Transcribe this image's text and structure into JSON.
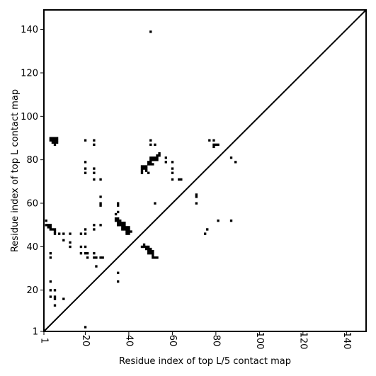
{
  "chart_data": {
    "type": "scatter",
    "xlabel": "Residue index of top L/5 contact map",
    "ylabel": "Residue index of top L contact map",
    "xlim": [
      1,
      149
    ],
    "ylim": [
      1,
      149
    ],
    "x_ticks": [
      1,
      20,
      40,
      60,
      80,
      100,
      120,
      140
    ],
    "y_ticks": [
      1,
      20,
      40,
      60,
      80,
      100,
      120,
      140
    ],
    "x_tick_labels": [
      "1",
      "20",
      "40",
      "60",
      "80",
      "100",
      "120",
      "140"
    ],
    "y_tick_labels": [
      "1",
      "20",
      "40",
      "60",
      "80",
      "100",
      "120",
      "140"
    ],
    "diagonal_line": true,
    "marker": "square",
    "marker_color": "#000000",
    "grid": false,
    "points": [
      [
        4,
        90
      ],
      [
        5,
        90
      ],
      [
        6,
        90
      ],
      [
        7,
        90
      ],
      [
        4,
        89
      ],
      [
        5,
        89
      ],
      [
        6,
        89
      ],
      [
        7,
        89
      ],
      [
        5,
        88
      ],
      [
        6,
        88
      ],
      [
        7,
        88
      ],
      [
        6,
        87
      ],
      [
        20,
        89
      ],
      [
        24,
        89
      ],
      [
        24,
        87
      ],
      [
        20,
        79
      ],
      [
        20,
        76
      ],
      [
        24,
        76
      ],
      [
        20,
        74
      ],
      [
        24,
        74
      ],
      [
        24,
        71
      ],
      [
        27,
        71
      ],
      [
        27,
        63
      ],
      [
        27,
        60
      ],
      [
        27,
        59
      ],
      [
        35,
        60
      ],
      [
        35,
        59
      ],
      [
        35,
        56
      ],
      [
        34,
        55
      ],
      [
        34,
        53
      ],
      [
        35,
        53
      ],
      [
        34,
        52
      ],
      [
        35,
        52
      ],
      [
        36,
        52
      ],
      [
        35,
        51
      ],
      [
        36,
        51
      ],
      [
        37,
        51
      ],
      [
        38,
        51
      ],
      [
        35,
        50
      ],
      [
        36,
        50
      ],
      [
        37,
        50
      ],
      [
        38,
        50
      ],
      [
        37,
        49
      ],
      [
        38,
        49
      ],
      [
        39,
        49
      ],
      [
        40,
        49
      ],
      [
        37,
        48
      ],
      [
        38,
        48
      ],
      [
        39,
        48
      ],
      [
        40,
        48
      ],
      [
        39,
        47
      ],
      [
        40,
        47
      ],
      [
        41,
        47
      ],
      [
        39,
        46
      ],
      [
        40,
        46
      ],
      [
        2,
        52
      ],
      [
        2,
        50
      ],
      [
        3,
        50
      ],
      [
        4,
        50
      ],
      [
        3,
        49
      ],
      [
        4,
        49
      ],
      [
        4,
        48
      ],
      [
        5,
        48
      ],
      [
        6,
        48
      ],
      [
        6,
        47
      ],
      [
        6,
        46
      ],
      [
        8,
        46
      ],
      [
        10,
        46
      ],
      [
        13,
        46
      ],
      [
        18,
        46
      ],
      [
        20,
        46
      ],
      [
        20,
        48
      ],
      [
        24,
        50
      ],
      [
        24,
        48
      ],
      [
        27,
        50
      ],
      [
        10,
        43
      ],
      [
        13,
        42
      ],
      [
        13,
        40
      ],
      [
        18,
        40
      ],
      [
        20,
        40
      ],
      [
        18,
        37
      ],
      [
        20,
        37
      ],
      [
        21,
        37
      ],
      [
        24,
        37
      ],
      [
        4,
        37
      ],
      [
        4,
        35
      ],
      [
        21,
        35
      ],
      [
        24,
        35
      ],
      [
        25,
        35
      ],
      [
        27,
        35
      ],
      [
        28,
        35
      ],
      [
        25,
        31
      ],
      [
        35,
        28
      ],
      [
        35,
        24
      ],
      [
        4,
        24
      ],
      [
        4,
        20
      ],
      [
        6,
        20
      ],
      [
        4,
        17
      ],
      [
        6,
        17
      ],
      [
        6,
        16
      ],
      [
        10,
        16
      ],
      [
        6,
        13
      ],
      [
        20,
        3
      ],
      [
        46,
        77
      ],
      [
        47,
        77
      ],
      [
        48,
        77
      ],
      [
        46,
        76
      ],
      [
        47,
        76
      ],
      [
        48,
        76
      ],
      [
        46,
        75
      ],
      [
        48,
        75
      ],
      [
        46,
        74
      ],
      [
        49,
        74
      ],
      [
        49,
        79
      ],
      [
        50,
        79
      ],
      [
        49,
        78
      ],
      [
        50,
        78
      ],
      [
        51,
        78
      ],
      [
        50,
        81
      ],
      [
        51,
        81
      ],
      [
        52,
        81
      ],
      [
        53,
        81
      ],
      [
        50,
        80
      ],
      [
        51,
        80
      ],
      [
        52,
        80
      ],
      [
        53,
        80
      ],
      [
        54,
        83
      ],
      [
        54,
        82
      ],
      [
        53,
        82
      ],
      [
        50,
        89
      ],
      [
        50,
        87
      ],
      [
        52,
        87
      ],
      [
        57,
        81
      ],
      [
        57,
        79
      ],
      [
        60,
        79
      ],
      [
        60,
        76
      ],
      [
        60,
        74
      ],
      [
        60,
        71
      ],
      [
        63,
        71
      ],
      [
        64,
        71
      ],
      [
        46,
        40
      ],
      [
        47,
        40
      ],
      [
        48,
        40
      ],
      [
        47,
        41
      ],
      [
        48,
        39
      ],
      [
        49,
        39
      ],
      [
        49,
        40
      ],
      [
        50,
        39
      ],
      [
        49,
        38
      ],
      [
        50,
        38
      ],
      [
        51,
        38
      ],
      [
        49,
        37
      ],
      [
        50,
        37
      ],
      [
        51,
        37
      ],
      [
        51,
        36
      ],
      [
        51,
        35
      ],
      [
        52,
        35
      ],
      [
        53,
        35
      ],
      [
        52,
        60
      ],
      [
        71,
        64
      ],
      [
        71,
        63
      ],
      [
        71,
        60
      ],
      [
        76,
        48
      ],
      [
        75,
        46
      ],
      [
        77,
        89
      ],
      [
        79,
        89
      ],
      [
        79,
        87
      ],
      [
        80,
        87
      ],
      [
        81,
        87
      ],
      [
        79,
        86
      ],
      [
        81,
        52
      ],
      [
        87,
        52
      ],
      [
        87,
        81
      ],
      [
        89,
        79
      ],
      [
        50,
        139
      ]
    ]
  }
}
